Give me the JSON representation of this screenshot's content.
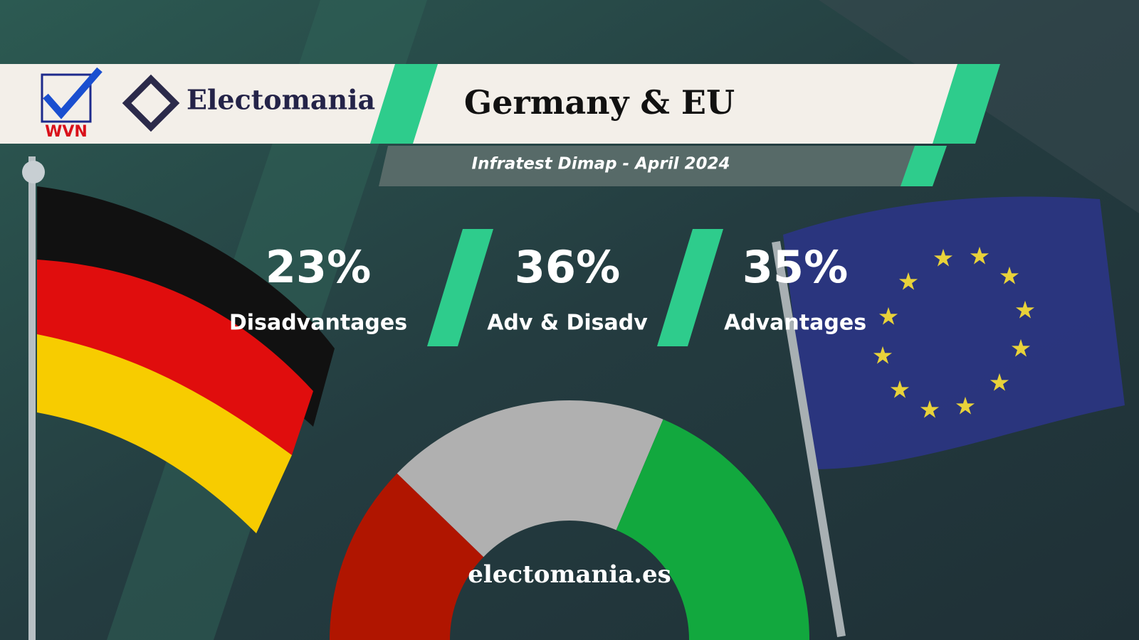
{
  "chart_data": {
    "type": "half-donut",
    "title": "Germany & EU",
    "subtitle": "Infratest Dimap - April 2024",
    "categories": [
      "Disadvantages",
      "Adv & Disadv",
      "Advantages"
    ],
    "values": [
      23,
      36,
      35
    ],
    "value_labels": [
      "23%",
      "36%",
      "35%"
    ],
    "colors": [
      "#b01500",
      "#b0b0b0",
      "#12a83e"
    ]
  },
  "branding": {
    "logo": "Electomania",
    "badge": "WVN",
    "footer": "electomania.es"
  }
}
